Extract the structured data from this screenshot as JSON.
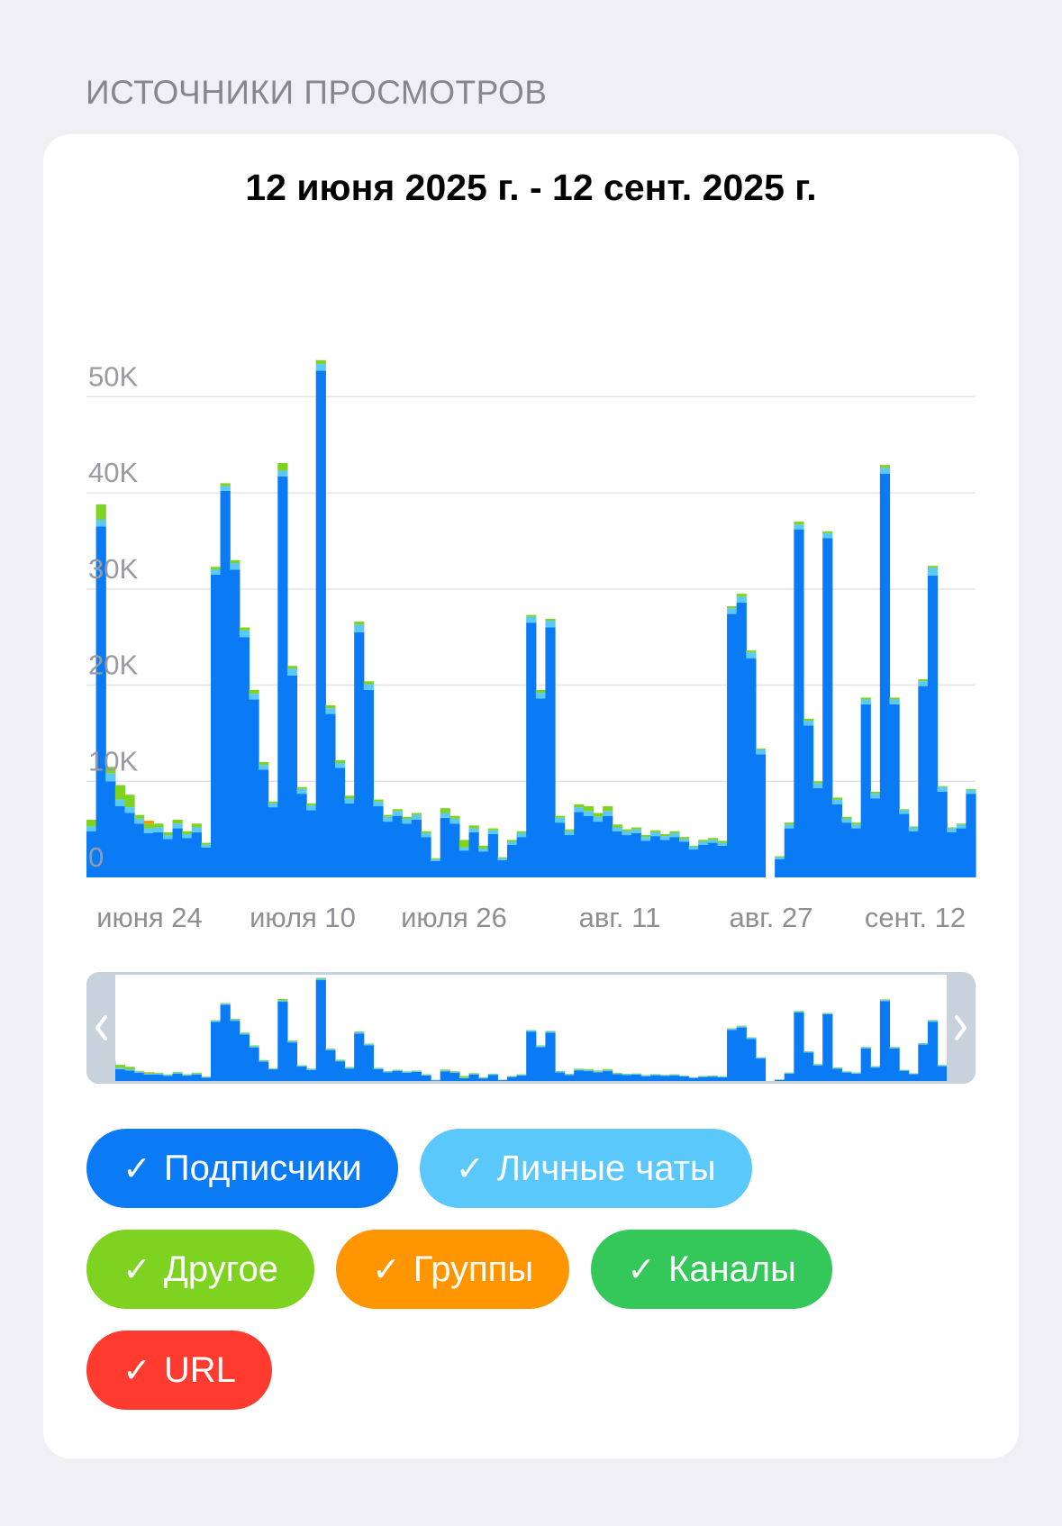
{
  "section_title": "ИСТОЧНИКИ ПРОСМОТРОВ",
  "date_range": "12 июня 2025 г. - 12 сент. 2025 г.",
  "colors": {
    "subscribers": "#0a7bf5",
    "private_chats": "#5ac8fa",
    "other": "#7ed321",
    "groups": "#ff9500",
    "channels": "#34c759",
    "url": "#ff3b30",
    "grid": "#e3e3e8",
    "navigator_mask": "#c8d2dc"
  },
  "filters": [
    {
      "label": "Подписчики",
      "color": "#0a7bf5",
      "check": "✓"
    },
    {
      "label": "Личные чаты",
      "color": "#5ac8fa",
      "check": "✓"
    },
    {
      "label": "Другое",
      "color": "#7ed321",
      "check": "✓"
    },
    {
      "label": "Группы",
      "color": "#ff9500",
      "check": "✓"
    },
    {
      "label": "Каналы",
      "color": "#34c759",
      "check": "✓"
    },
    {
      "label": "URL",
      "color": "#ff3b30",
      "check": "✓"
    }
  ],
  "navigator": {
    "left_icon": "chevron-left-icon",
    "right_icon": "chevron-right-icon"
  },
  "chart_data": {
    "type": "bar",
    "stacked": true,
    "title": "12 июня 2025 г. - 12 сент. 2025 г.",
    "ylim": [
      0,
      55000
    ],
    "y_ticks": [
      0,
      10000,
      20000,
      30000,
      40000,
      50000
    ],
    "y_tick_labels": [
      "0",
      "10K",
      "20K",
      "30K",
      "40K",
      "50K"
    ],
    "x_tick_labels": [
      "июня 24",
      "июля 10",
      "июля 26",
      "авг. 11",
      "авг. 27",
      "сент. 12"
    ],
    "grid": true,
    "legend": "bottom",
    "series": [
      {
        "name": "Подписчики",
        "color": "#0a7bf5",
        "values": [
          4800,
          36500,
          10000,
          7400,
          6700,
          5600,
          4600,
          4700,
          4000,
          5100,
          4100,
          4700,
          3100,
          31500,
          40200,
          32000,
          25000,
          18500,
          11200,
          7300,
          41700,
          21000,
          8700,
          7000,
          52700,
          17000,
          11400,
          7700,
          25500,
          19500,
          7400,
          5800,
          6400,
          5600,
          6000,
          4200,
          1700,
          6200,
          5600,
          2800,
          4700,
          2700,
          4500,
          1800,
          3400,
          4200,
          26500,
          18600,
          26000,
          5700,
          4400,
          6800,
          6400,
          5800,
          6400,
          4800,
          4400,
          4600,
          3800,
          4300,
          3900,
          4200,
          3700,
          2900,
          3400,
          3600,
          3300,
          27400,
          28600,
          22800,
          12800,
          0,
          1900,
          5100,
          36200,
          15800,
          9300,
          35300,
          7600,
          5700,
          5100,
          18000,
          8200,
          42000,
          18000,
          6600,
          4800,
          19900,
          31400,
          8900,
          4700,
          5100,
          8700
        ]
      },
      {
        "name": "Личные чаты",
        "color": "#5ac8fa",
        "values": [
          500,
          700,
          800,
          700,
          600,
          500,
          500,
          500,
          400,
          500,
          400,
          500,
          300,
          500,
          500,
          700,
          700,
          600,
          500,
          400,
          600,
          700,
          500,
          500,
          700,
          600,
          500,
          500,
          800,
          600,
          500,
          500,
          500,
          500,
          500,
          400,
          200,
          500,
          500,
          300,
          400,
          300,
          400,
          200,
          300,
          400,
          600,
          600,
          700,
          500,
          400,
          500,
          500,
          500,
          500,
          400,
          400,
          400,
          400,
          400,
          400,
          400,
          300,
          300,
          300,
          300,
          300,
          600,
          600,
          600,
          500,
          0,
          200,
          400,
          500,
          500,
          500,
          500,
          500,
          400,
          400,
          500,
          500,
          600,
          500,
          400,
          400,
          500,
          800,
          500,
          400,
          400,
          400
        ]
      },
      {
        "name": "Другое",
        "color": "#7ed321",
        "values": [
          700,
          1600,
          700,
          1500,
          1300,
          400,
          500,
          400,
          300,
          400,
          300,
          400,
          200,
          300,
          300,
          300,
          300,
          400,
          300,
          200,
          800,
          300,
          200,
          200,
          400,
          300,
          300,
          300,
          300,
          300,
          200,
          200,
          200,
          200,
          200,
          200,
          100,
          500,
          300,
          800,
          300,
          300,
          200,
          100,
          200,
          200,
          200,
          300,
          200,
          200,
          200,
          300,
          500,
          400,
          500,
          300,
          200,
          200,
          200,
          200,
          200,
          200,
          200,
          100,
          200,
          200,
          200,
          200,
          300,
          200,
          100,
          0,
          100,
          200,
          300,
          200,
          200,
          200,
          200,
          200,
          200,
          200,
          200,
          300,
          200,
          100,
          100,
          200,
          200,
          100,
          100,
          100,
          100
        ]
      },
      {
        "name": "Группы",
        "color": "#ff9500",
        "values": [
          0,
          0,
          0,
          0,
          0,
          0,
          300,
          0,
          0,
          0,
          0,
          0,
          0,
          0,
          0,
          0,
          0,
          0,
          0,
          0,
          0,
          0,
          0,
          0,
          0,
          0,
          0,
          0,
          0,
          0,
          0,
          0,
          0,
          0,
          0,
          0,
          0,
          0,
          0,
          0,
          0,
          0,
          0,
          0,
          0,
          0,
          0,
          0,
          0,
          0,
          0,
          0,
          0,
          0,
          0,
          0,
          0,
          0,
          0,
          0,
          0,
          0,
          0,
          0,
          0,
          0,
          0,
          0,
          0,
          0,
          0,
          0,
          0,
          0,
          0,
          0,
          0,
          0,
          0,
          0,
          0,
          0,
          0,
          0,
          0,
          0,
          0,
          0,
          0,
          0,
          0,
          0,
          0
        ]
      }
    ]
  }
}
